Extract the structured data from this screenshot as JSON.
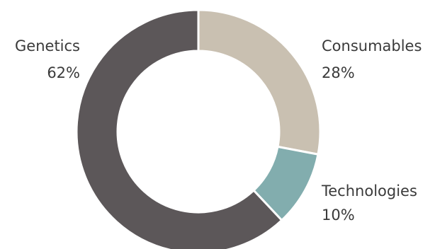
{
  "chart_data": {
    "type": "pie",
    "donut": true,
    "categories": [
      "Consumables",
      "Technologies",
      "Genetics"
    ],
    "values": [
      28,
      10,
      62
    ],
    "value_labels": [
      "28%",
      "10%",
      "62%"
    ],
    "colors": [
      "#c9c0b1",
      "#82adae",
      "#5c5759"
    ],
    "start": "12 o'clock",
    "direction": "clockwise",
    "legend": "none",
    "labels_position": "outside"
  }
}
